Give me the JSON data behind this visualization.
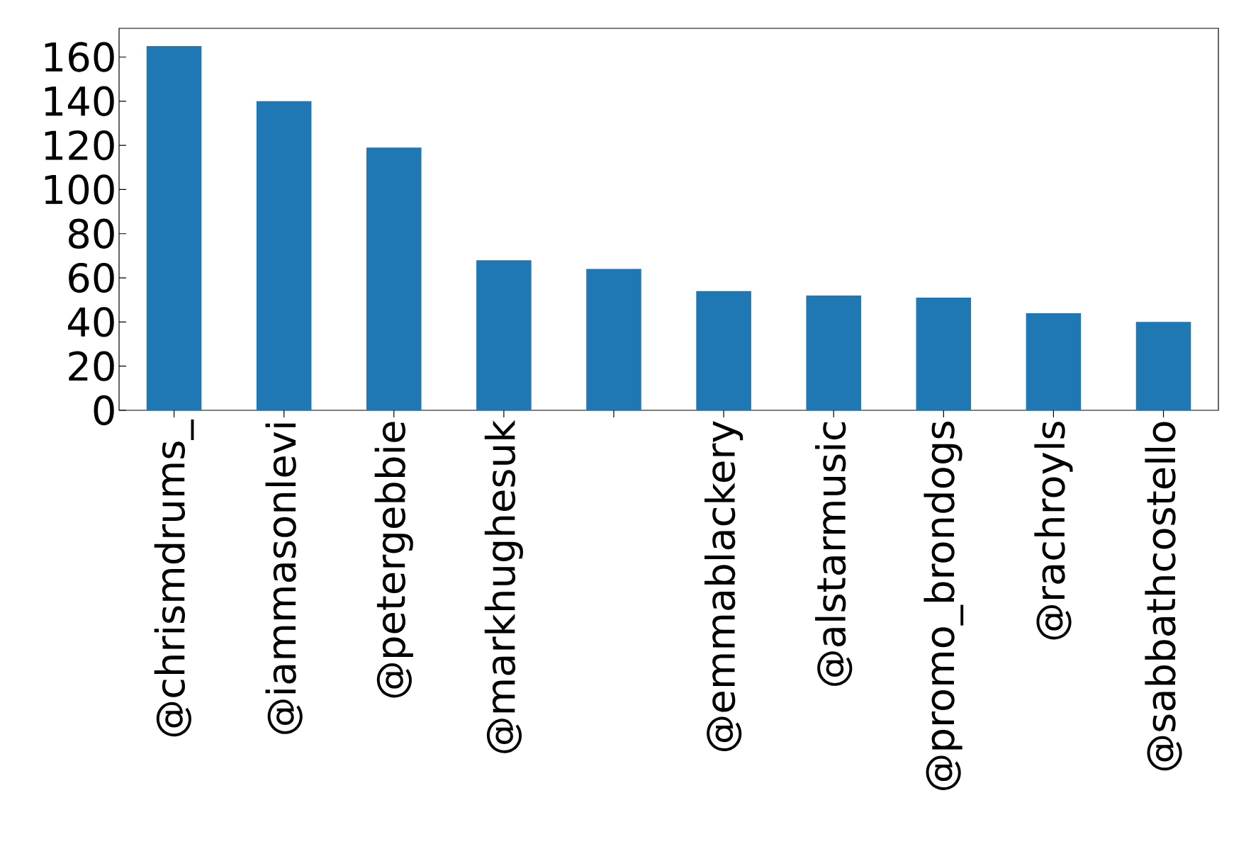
{
  "chart_data": {
    "type": "bar",
    "categories": [
      "@chrismdrums_",
      "@iammasonlevi",
      "@petergebbie",
      "@markhughesuk",
      null,
      "@emmablackery",
      "@alstarmusic",
      "@promo_brondogs",
      "@rachroyls",
      "@sabbathcostello"
    ],
    "values": [
      165,
      140,
      119,
      68,
      64,
      54,
      52,
      51,
      44,
      40
    ],
    "color": "#1f77b4",
    "ylim": [
      0,
      173
    ],
    "yticks": [
      0,
      20,
      40,
      60,
      80,
      100,
      120,
      140,
      160
    ],
    "grid": false
  }
}
